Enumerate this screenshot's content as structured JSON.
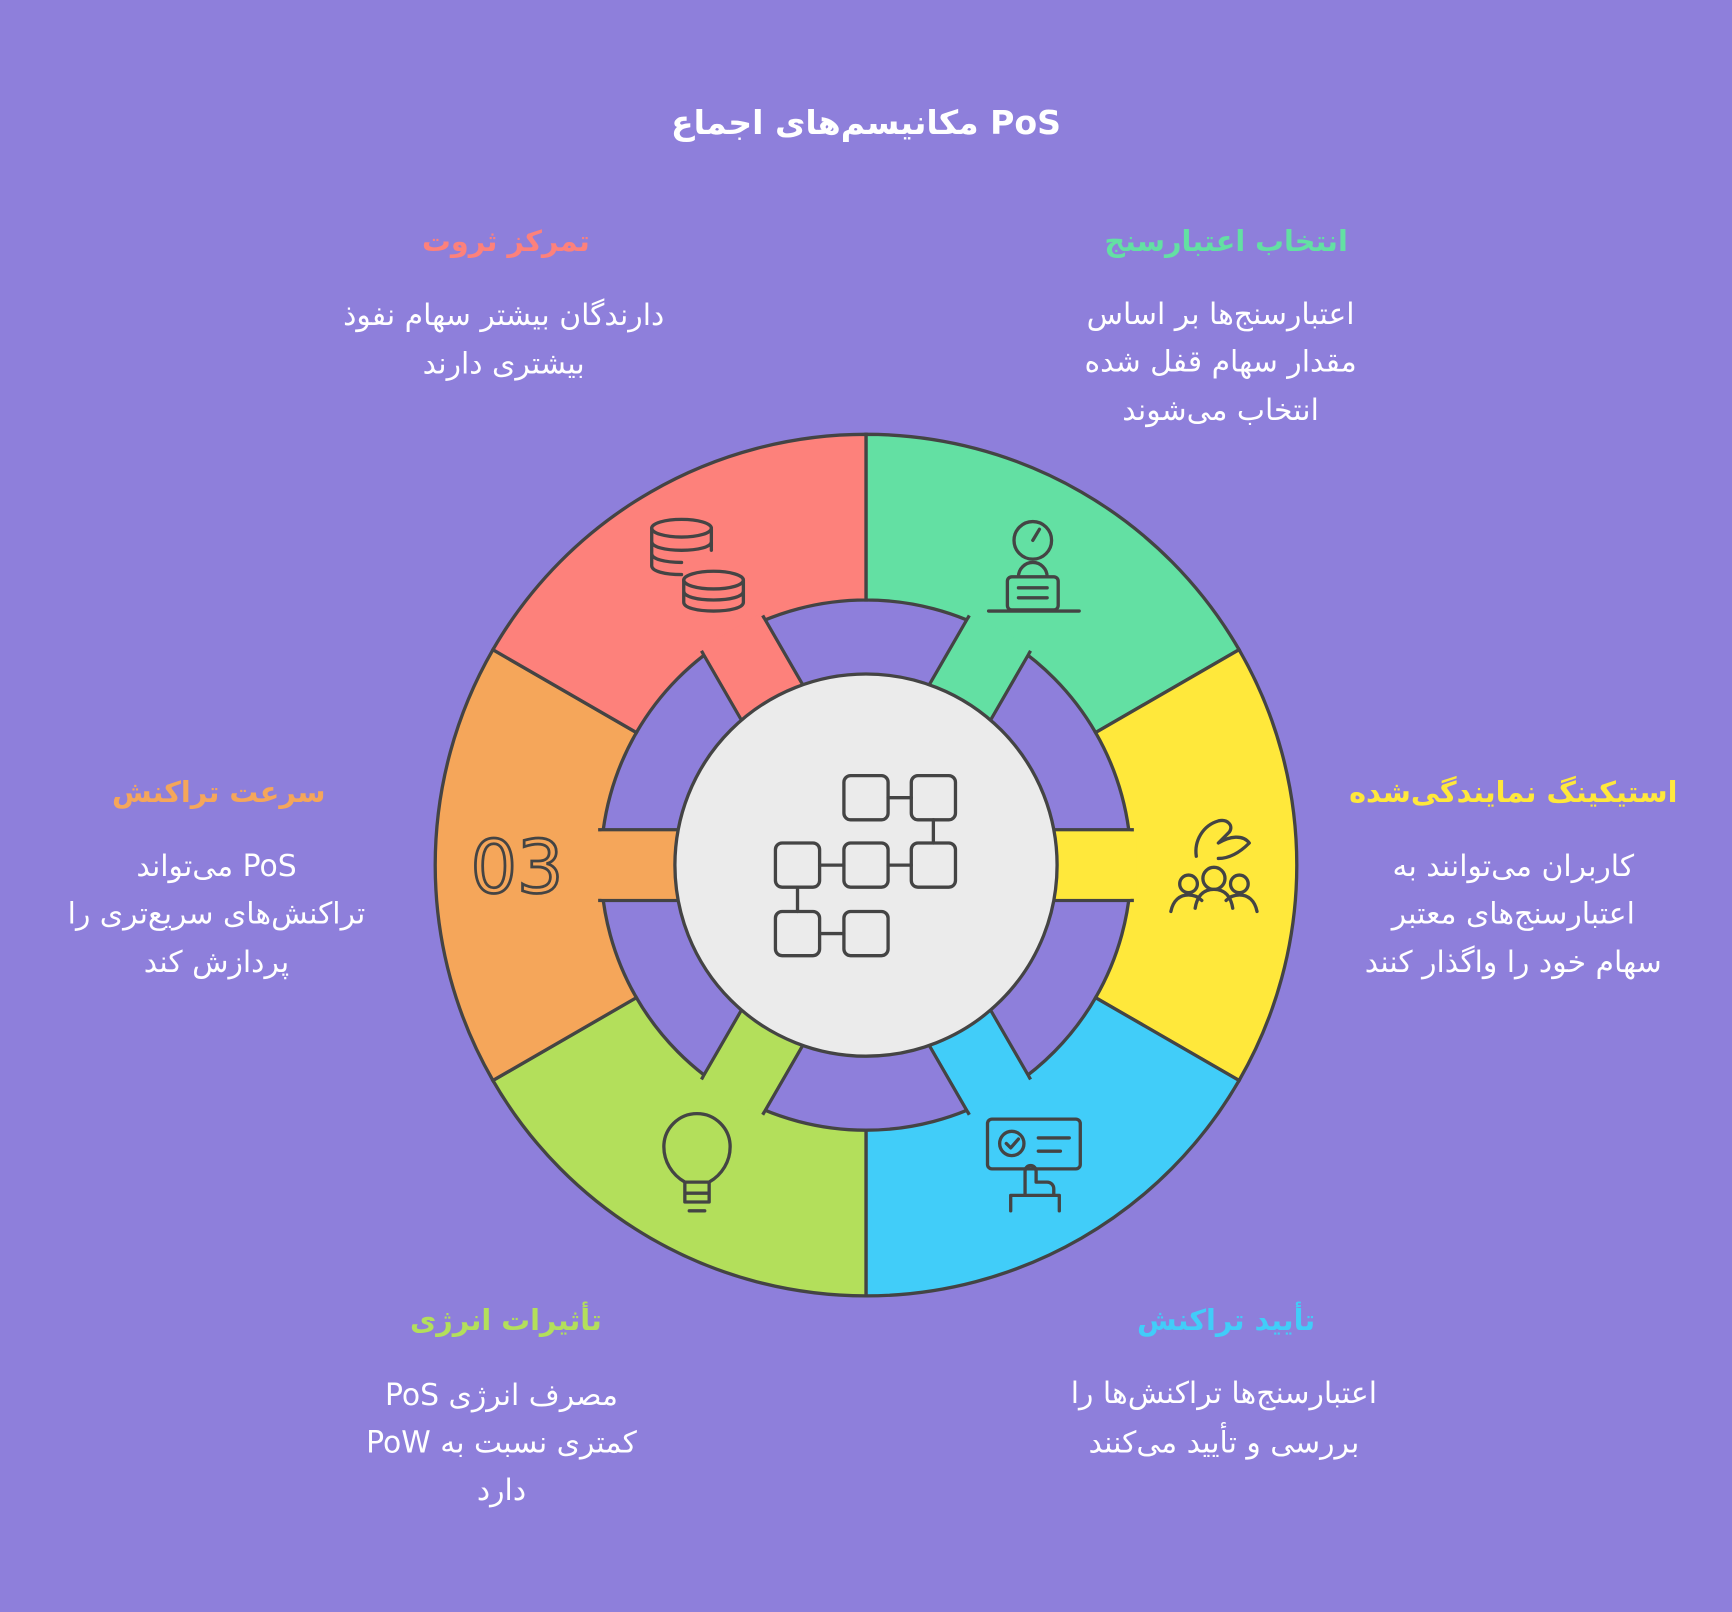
{
  "title": "PoS مکانیسم‌های اجماع",
  "colors": {
    "background": "#8e7fdb",
    "center": "#ebebeb",
    "outline": "#444444"
  },
  "center_icon": "flowchart-icon",
  "segments": [
    {
      "id": "validator-selection",
      "color": "#63e0a3",
      "icon": "stopwatch-weight-icon",
      "heading": "انتخاب اعتبارسنج",
      "lines": [
        "اعتبارسنج‌ها بر اساس",
        "مقدار سهام قفل شده",
        "انتخاب می‌شوند"
      ]
    },
    {
      "id": "delegated-staking",
      "color": "#ffe83b",
      "icon": "people-hand-icon",
      "heading": "استیکینگ نمایندگی‌شده",
      "lines": [
        "کاربران می‌توانند به",
        "اعتبارسنج‌های معتبر",
        "سهام خود را واگذار کنند"
      ]
    },
    {
      "id": "transaction-validation",
      "color": "#41cdf9",
      "icon": "certificate-hand-icon",
      "heading": "تأیید تراکنش",
      "lines": [
        "اعتبارسنج‌ها تراکنش‌ها را",
        "بررسی و تأیید می‌کنند"
      ]
    },
    {
      "id": "energy-impact",
      "color": "#b3df5b",
      "icon": "lightbulb-icon",
      "heading": "تأثیرات انرژی",
      "lines": [
        "مصرف انرژی PoS",
        "کمتری نسبت به PoW",
        "دارد"
      ]
    },
    {
      "id": "transaction-speed",
      "color": "#f5a65a",
      "icon": "number-label",
      "number": "03",
      "heading": "سرعت تراکنش",
      "lines": [
        "PoS می‌تواند",
        "تراکنش‌های سریع‌تری را",
        "پردازش کند"
      ]
    },
    {
      "id": "wealth-concentration",
      "color": "#fd817b",
      "icon": "coins-stack-icon",
      "heading": "تمرکز ثروت",
      "lines": [
        "دارندگان بیشتر سهام نفوذ",
        "بیشتری دارند"
      ]
    }
  ]
}
